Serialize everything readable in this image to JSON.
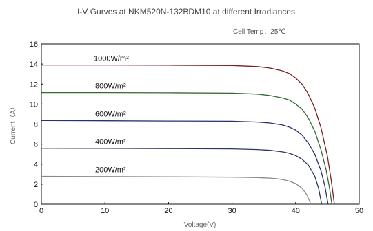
{
  "chart_data": {
    "type": "line",
    "title": "I-V Gurves at NKM520N-132BDM10 at different Irradiances",
    "annotation": "Cell Temp：25℃",
    "xlabel": "Voltage(V)",
    "ylabel": "Current（A）",
    "xlim": [
      0,
      50
    ],
    "ylim": [
      0,
      16
    ],
    "xticks": [
      0,
      10,
      20,
      30,
      40,
      50
    ],
    "yticks": [
      0,
      2,
      4,
      6,
      8,
      10,
      12,
      14,
      16
    ],
    "grid": false,
    "legend": "inline labels above curves",
    "series": [
      {
        "name": "1000W/m²",
        "color": "#7a1f22",
        "x": [
          0,
          10,
          20,
          30,
          34,
          36,
          38,
          39,
          40,
          41,
          42,
          43,
          44,
          45,
          45.6,
          46.1
        ],
        "y": [
          13.9,
          13.9,
          13.88,
          13.85,
          13.75,
          13.6,
          13.3,
          13.05,
          12.6,
          12.0,
          11.0,
          9.6,
          7.6,
          4.8,
          2.4,
          0
        ]
      },
      {
        "name": "800W/m²",
        "color": "#2f6b2f",
        "x": [
          0,
          10,
          20,
          30,
          34,
          36,
          38,
          39,
          40,
          41,
          42,
          43,
          44,
          44.8,
          45.3,
          45.7
        ],
        "y": [
          11.15,
          11.15,
          11.13,
          11.1,
          11.0,
          10.85,
          10.6,
          10.4,
          10.0,
          9.5,
          8.6,
          7.3,
          5.4,
          3.4,
          1.7,
          0
        ]
      },
      {
        "name": "600W/m²",
        "color": "#2a2f6e",
        "x": [
          0,
          10,
          20,
          30,
          34,
          36,
          38,
          39,
          40,
          41,
          42,
          43,
          44,
          44.6,
          45.1
        ],
        "y": [
          8.35,
          8.33,
          8.3,
          8.28,
          8.2,
          8.1,
          7.9,
          7.7,
          7.4,
          6.9,
          6.1,
          5.0,
          3.3,
          1.8,
          0
        ]
      },
      {
        "name": "400W/m²",
        "color": "#2a3560",
        "x": [
          0,
          10,
          20,
          30,
          34,
          36,
          38,
          39,
          40,
          41,
          42,
          43,
          43.6,
          44.1
        ],
        "y": [
          5.58,
          5.57,
          5.55,
          5.52,
          5.45,
          5.38,
          5.22,
          5.08,
          4.85,
          4.5,
          3.9,
          2.8,
          1.6,
          0
        ]
      },
      {
        "name": "200W/m²",
        "color": "#8a8a8a",
        "x": [
          0,
          10,
          20,
          30,
          34,
          36,
          37,
          38,
          39,
          40,
          41,
          41.8,
          42.4
        ],
        "y": [
          2.78,
          2.76,
          2.74,
          2.7,
          2.65,
          2.6,
          2.55,
          2.45,
          2.3,
          2.05,
          1.6,
          0.9,
          0
        ]
      }
    ]
  }
}
